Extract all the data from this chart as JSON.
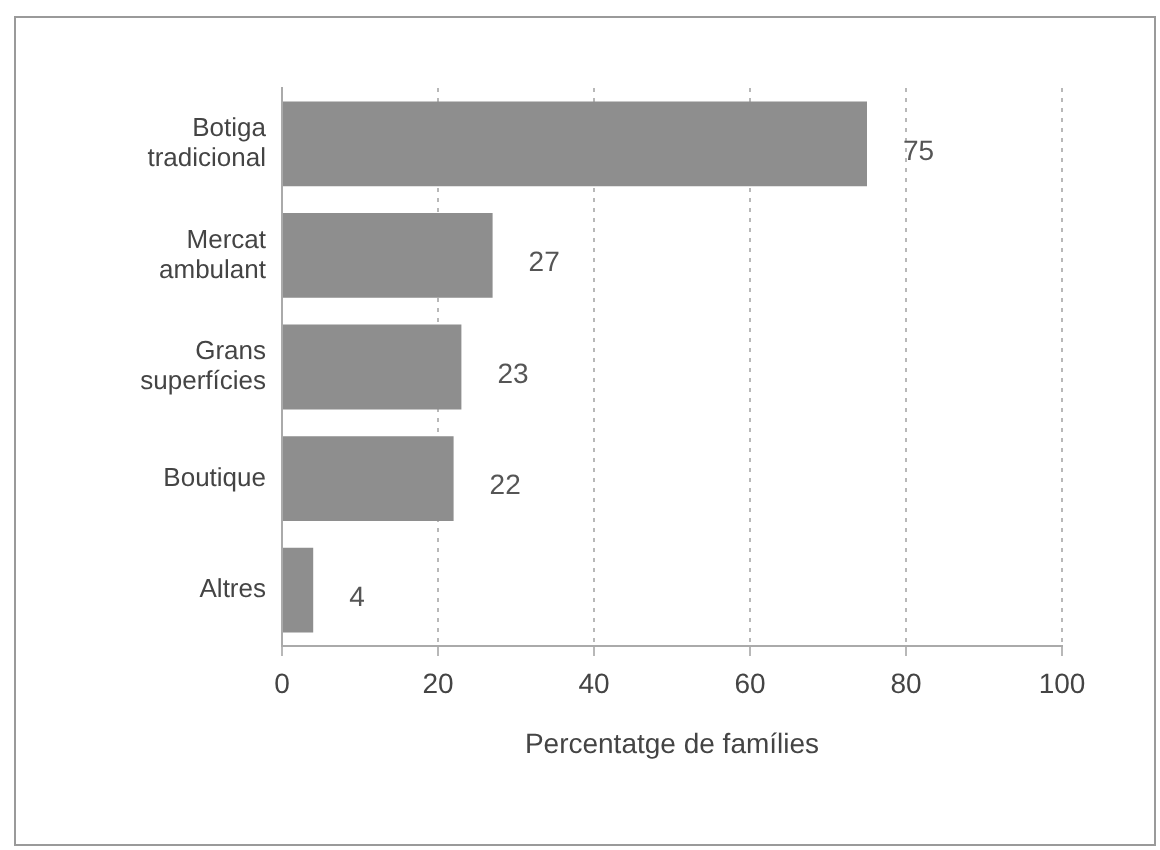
{
  "chart_data": {
    "type": "bar",
    "orientation": "horizontal",
    "categories": [
      "Botiga tradicional",
      "Mercat ambulant",
      "Grans superfícies",
      "Boutique",
      "Altres"
    ],
    "values": [
      75,
      27,
      23,
      22,
      4
    ],
    "color": "#8e8e8e",
    "xlabel": "Percentatge de famílies",
    "xlim": [
      0,
      100
    ],
    "xticks": [
      0,
      20,
      40,
      60,
      80,
      100
    ],
    "grid": "x",
    "data_labels": true
  }
}
